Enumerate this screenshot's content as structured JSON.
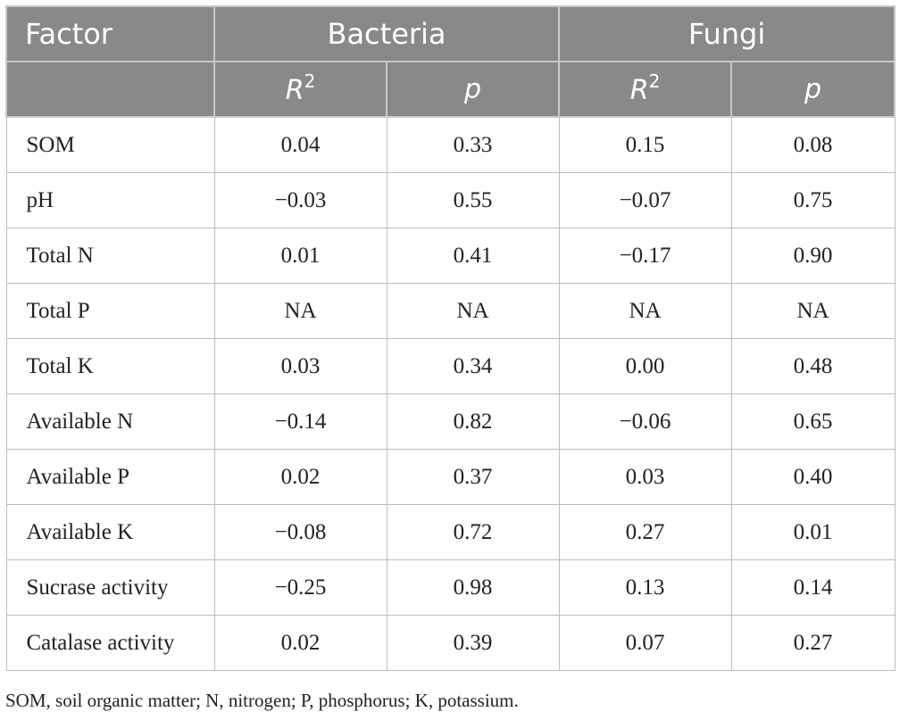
{
  "header": {
    "factor": "Factor",
    "group1": "Bacteria",
    "group2": "Fungi",
    "r2_base": "R",
    "r2_sup": "2",
    "p": "p"
  },
  "rows": [
    {
      "factor": "SOM",
      "b_r2": "0.04",
      "b_p": "0.33",
      "f_r2": "0.15",
      "f_p": "0.08"
    },
    {
      "factor": "pH",
      "b_r2": "−0.03",
      "b_p": "0.55",
      "f_r2": "−0.07",
      "f_p": "0.75"
    },
    {
      "factor": "Total N",
      "b_r2": "0.01",
      "b_p": "0.41",
      "f_r2": "−0.17",
      "f_p": "0.90"
    },
    {
      "factor": "Total P",
      "b_r2": "NA",
      "b_p": "NA",
      "f_r2": "NA",
      "f_p": "NA"
    },
    {
      "factor": "Total K",
      "b_r2": "0.03",
      "b_p": "0.34",
      "f_r2": "0.00",
      "f_p": "0.48"
    },
    {
      "factor": "Available N",
      "b_r2": "−0.14",
      "b_p": "0.82",
      "f_r2": "−0.06",
      "f_p": "0.65"
    },
    {
      "factor": "Available P",
      "b_r2": "0.02",
      "b_p": "0.37",
      "f_r2": "0.03",
      "f_p": "0.40"
    },
    {
      "factor": "Available K",
      "b_r2": "−0.08",
      "b_p": "0.72",
      "f_r2": "0.27",
      "f_p": "0.01"
    },
    {
      "factor": "Sucrase activity",
      "b_r2": "−0.25",
      "b_p": "0.98",
      "f_r2": "0.13",
      "f_p": "0.14"
    },
    {
      "factor": "Catalase activity",
      "b_r2": "0.02",
      "b_p": "0.39",
      "f_r2": "0.07",
      "f_p": "0.27"
    }
  ],
  "footnote": "SOM, soil organic matter; N, nitrogen; P, phosphorus; K, potassium."
}
